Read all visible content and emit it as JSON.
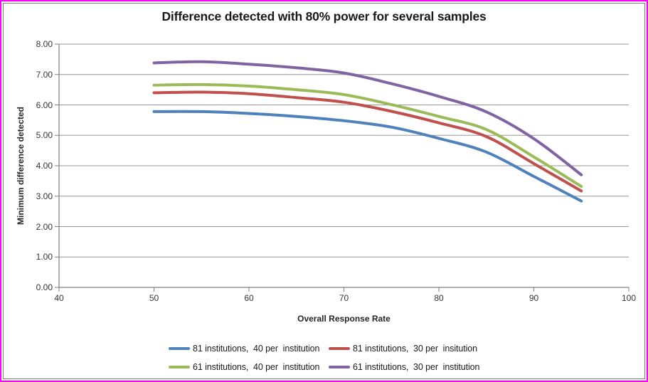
{
  "window": {
    "outer_border_color": "#FF00FF",
    "inner_border_color": "#808080",
    "background_color": "#FFFFFF"
  },
  "chart_data": {
    "type": "line",
    "title": "Difference detected with 80% power for several samples",
    "xlabel": "Overall Response Rate",
    "ylabel": "Minimum difference detected",
    "xlim": [
      40,
      100
    ],
    "ylim": [
      0,
      8
    ],
    "grid": "horizontal-only",
    "legend_position": "bottom",
    "gridline_color": "#969696",
    "axis_color": "#7F7F7F",
    "x_tick_values": [
      40,
      50,
      60,
      70,
      80,
      90,
      100
    ],
    "x_ticks": [
      "40",
      "50",
      "60",
      "70",
      "80",
      "90",
      "100"
    ],
    "y_tick_values": [
      0,
      1,
      2,
      3,
      4,
      5,
      6,
      7,
      8
    ],
    "y_ticks": [
      "0.00",
      "1.00",
      "2.00",
      "3.00",
      "4.00",
      "5.00",
      "6.00",
      "7.00",
      "8.00"
    ],
    "x": [
      50,
      55,
      60,
      65,
      70,
      75,
      80,
      85,
      90,
      95
    ],
    "series": [
      {
        "name": "81 institutions,  40 per  institution",
        "color": "#4F81BD",
        "values": [
          5.78,
          5.78,
          5.72,
          5.62,
          5.48,
          5.27,
          4.9,
          4.45,
          3.65,
          2.84
        ]
      },
      {
        "name": "81 institutions,  30 per  insitution",
        "color": "#C0504D",
        "values": [
          6.4,
          6.42,
          6.37,
          6.24,
          6.09,
          5.79,
          5.41,
          4.96,
          4.07,
          3.17
        ]
      },
      {
        "name": "61 institutions,  40 per  institution",
        "color": "#9BBB59",
        "values": [
          6.65,
          6.67,
          6.62,
          6.5,
          6.34,
          6.01,
          5.62,
          5.19,
          4.29,
          3.32
        ]
      },
      {
        "name": "61 institutions,  30 per  institution",
        "color": "#8064A2",
        "values": [
          7.38,
          7.42,
          7.34,
          7.22,
          7.05,
          6.7,
          6.28,
          5.77,
          4.89,
          3.7
        ]
      }
    ]
  }
}
